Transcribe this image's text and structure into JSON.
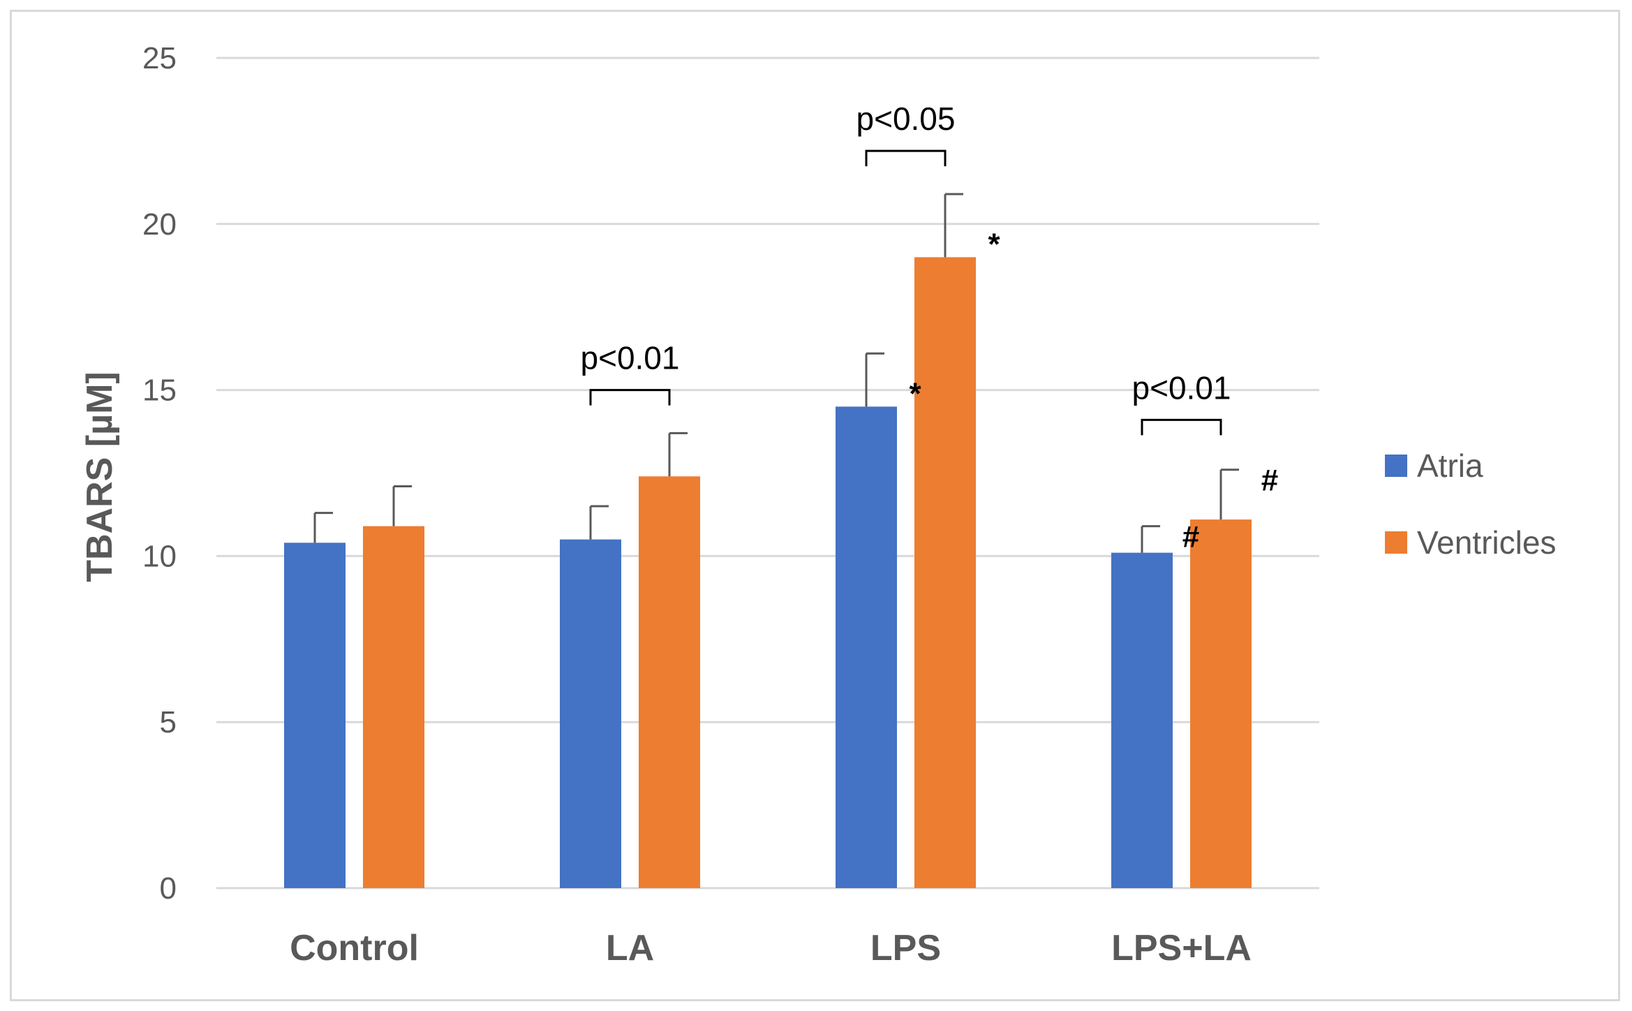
{
  "chart_data": {
    "type": "bar",
    "title": "",
    "xlabel": "",
    "ylabel": "TBARS [µM]",
    "ylim": [
      0,
      25
    ],
    "yticks": [
      0,
      5,
      10,
      15,
      20,
      25
    ],
    "grid": true,
    "legend_position": "right",
    "categories": [
      "Control",
      "LA",
      "LPS",
      "LPS+LA"
    ],
    "series": [
      {
        "name": "Atria",
        "color": "#4472C4",
        "values": [
          10.4,
          10.5,
          14.5,
          10.1
        ],
        "errors": [
          0.9,
          1.0,
          1.6,
          0.8
        ],
        "markers": [
          "",
          "",
          "*",
          "#"
        ]
      },
      {
        "name": "Ventricles",
        "color": "#ED7D31",
        "values": [
          10.9,
          12.4,
          19.0,
          11.1
        ],
        "errors": [
          1.2,
          1.3,
          1.9,
          1.5
        ],
        "markers": [
          "",
          "",
          "*",
          "#"
        ]
      }
    ],
    "annotations": [
      {
        "category_index": 1,
        "text": "p<0.01",
        "bracket_at": 15.0
      },
      {
        "category_index": 2,
        "text": "p<0.05",
        "bracket_at": 22.2
      },
      {
        "category_index": 3,
        "text": "p<0.01",
        "bracket_at": 14.1
      }
    ]
  }
}
